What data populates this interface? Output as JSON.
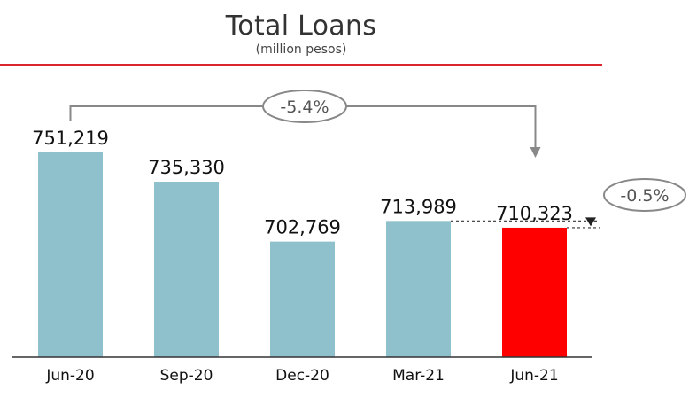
{
  "chart_data": {
    "type": "bar",
    "title": "Total Loans",
    "subtitle": "(million pesos)",
    "categories": [
      "Jun-20",
      "Sep-20",
      "Dec-20",
      "Mar-21",
      "Jun-21"
    ],
    "values": [
      751219,
      735330,
      702769,
      713989,
      710323
    ],
    "value_labels": [
      "751,219",
      "735,330",
      "702,769",
      "713,989",
      "710,323"
    ],
    "ylim": [
      0,
      751219
    ],
    "grid": false,
    "legend": "none",
    "annotations": [
      {
        "text": "-5.4%",
        "from": "Jun-20",
        "to": "Jun-21"
      },
      {
        "text": "-0.5%",
        "from": "Mar-21",
        "to": "Jun-21"
      }
    ],
    "colors": {
      "bar": "#8fc1cc",
      "highlight": "#ff0000",
      "rule": "#d9262c",
      "annotation": "#888888"
    },
    "highlight_index": 4
  }
}
